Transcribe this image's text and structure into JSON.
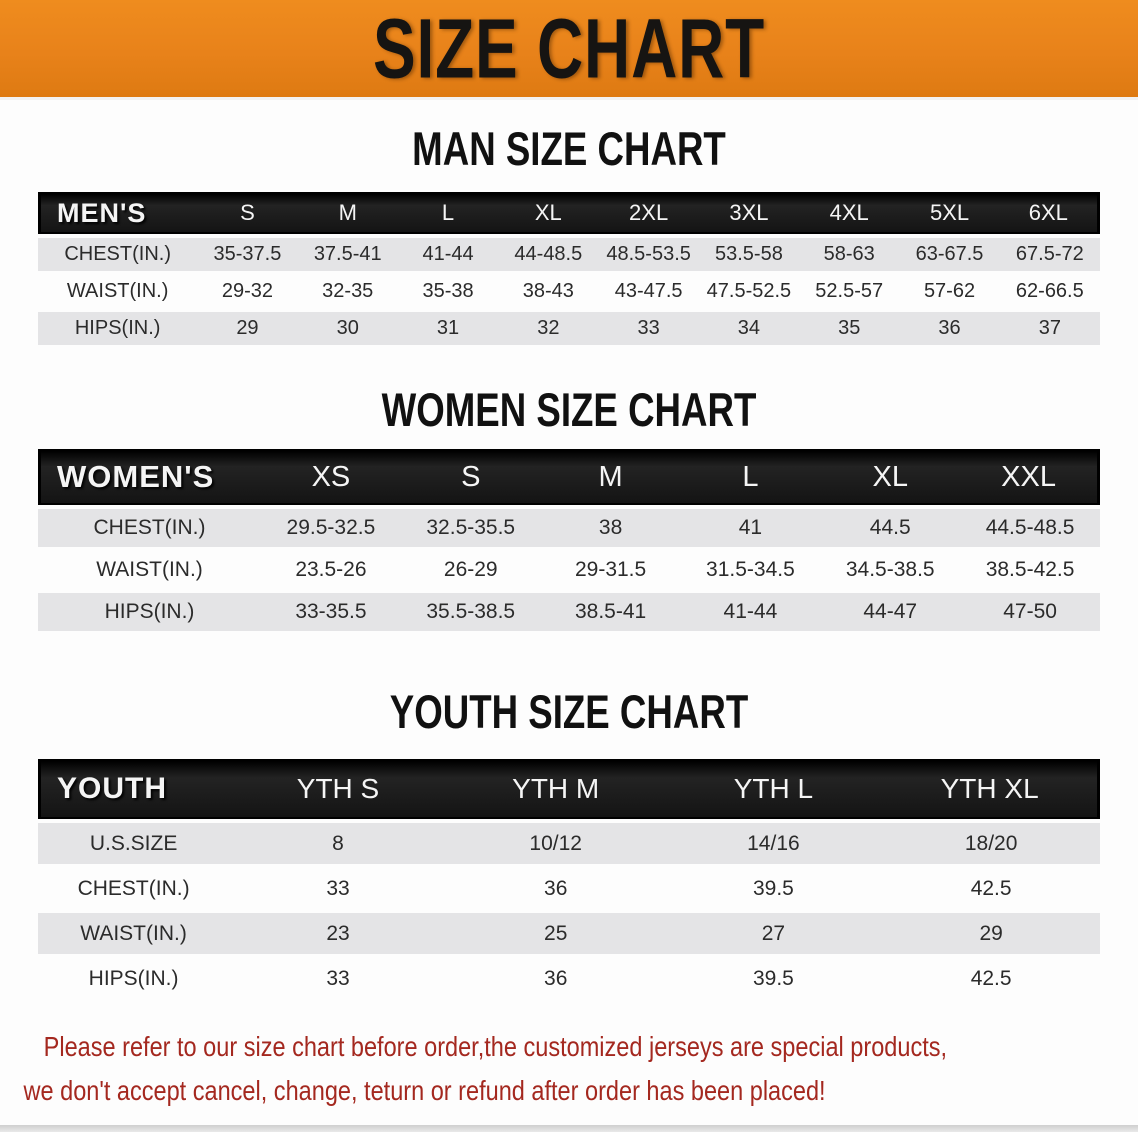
{
  "banner": {
    "title": "SIZE CHART"
  },
  "colors": {
    "bannerBg": "#e8821a",
    "headerBar": "#141414",
    "rowGray": "#e4e4e6",
    "headingBlack": "#111111",
    "disclaimerRed": "#a4281f"
  },
  "sections": [
    {
      "heading": "MAN SIZE CHART",
      "corner": "MEN'S",
      "columns": [
        "S",
        "M",
        "L",
        "XL",
        "2XL",
        "3XL",
        "4XL",
        "5XL",
        "6XL"
      ],
      "rows": [
        {
          "label": "CHEST(IN.)",
          "values": [
            "35-37.5",
            "37.5-41",
            "41-44",
            "44-48.5",
            "48.5-53.5",
            "53.5-58",
            "58-63",
            "63-67.5",
            "67.5-72"
          ]
        },
        {
          "label": "WAIST(IN.)",
          "values": [
            "29-32",
            "32-35",
            "35-38",
            "38-43",
            "43-47.5",
            "47.5-52.5",
            "52.5-57",
            "57-62",
            "62-66.5"
          ]
        },
        {
          "label": "HIPS(IN.)",
          "values": [
            "29",
            "30",
            "31",
            "32",
            "33",
            "34",
            "35",
            "36",
            "37"
          ]
        }
      ]
    },
    {
      "heading": "WOMEN SIZE CHART",
      "corner": "WOMEN'S",
      "columns": [
        "XS",
        "S",
        "M",
        "L",
        "XL",
        "XXL"
      ],
      "rows": [
        {
          "label": "CHEST(IN.)",
          "values": [
            "29.5-32.5",
            "32.5-35.5",
            "38",
            "41",
            "44.5",
            "44.5-48.5"
          ]
        },
        {
          "label": "WAIST(IN.)",
          "values": [
            "23.5-26",
            "26-29",
            "29-31.5",
            "31.5-34.5",
            "34.5-38.5",
            "38.5-42.5"
          ]
        },
        {
          "label": "HIPS(IN.)",
          "values": [
            "33-35.5",
            "35.5-38.5",
            "38.5-41",
            "41-44",
            "44-47",
            "47-50"
          ]
        }
      ]
    },
    {
      "heading": "YOUTH SIZE CHART",
      "corner": "YOUTH",
      "columns": [
        "YTH S",
        "YTH M",
        "YTH L",
        "YTH XL"
      ],
      "rows": [
        {
          "label": "U.S.SIZE",
          "values": [
            "8",
            "10/12",
            "14/16",
            "18/20"
          ]
        },
        {
          "label": "CHEST(IN.)",
          "values": [
            "33",
            "36",
            "39.5",
            "42.5"
          ]
        },
        {
          "label": "WAIST(IN.)",
          "values": [
            "23",
            "25",
            "27",
            "29"
          ]
        },
        {
          "label": "HIPS(IN.)",
          "values": [
            "33",
            "36",
            "39.5",
            "42.5"
          ]
        }
      ]
    }
  ],
  "disclaimer": {
    "line1": "Please refer to our size chart before order,the customized jerseys are special products,",
    "line2": "we don't accept cancel, change, teturn or refund after order has been placed!"
  }
}
